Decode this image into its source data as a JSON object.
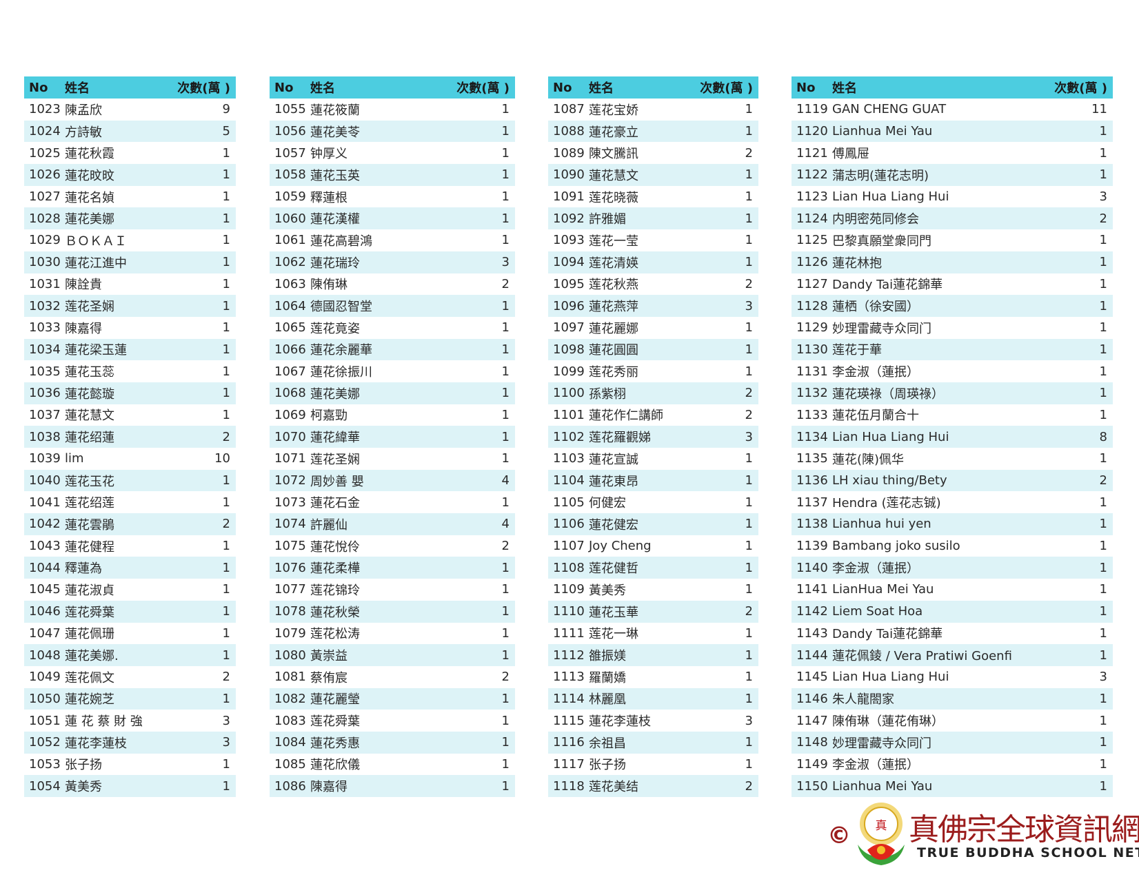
{
  "header": {
    "no": "No",
    "name": "姓名",
    "count": "次數(萬 )"
  },
  "colors": {
    "header_bg": "#4ccde0",
    "stripe": "#ddf3f7",
    "logo_red": "#9b1c1c"
  },
  "tables": [
    [
      [
        "1023",
        "陳孟欣",
        "9"
      ],
      [
        "1024",
        "方詩敏",
        "5"
      ],
      [
        "1025",
        "蓮花秋霞",
        "1"
      ],
      [
        "1026",
        "蓮花旼旼",
        "1"
      ],
      [
        "1027",
        "蓮花名媜",
        "1"
      ],
      [
        "1028",
        "蓮花美娜",
        "1"
      ],
      [
        "1029",
        "ＢＯＫＡＩ",
        "1"
      ],
      [
        "1030",
        "蓮花江進中",
        "1"
      ],
      [
        "1031",
        "陳詮貴",
        "1"
      ],
      [
        "1032",
        "莲花圣娴",
        "1"
      ],
      [
        "1033",
        "陳嘉得",
        "1"
      ],
      [
        "1034",
        "蓮花梁玉蓮",
        "1"
      ],
      [
        "1035",
        "蓮花玉蕊",
        "1"
      ],
      [
        "1036",
        "蓮花懿璇",
        "1"
      ],
      [
        "1037",
        "蓮花慧文",
        "1"
      ],
      [
        "1038",
        "蓮花绍蓮",
        "2"
      ],
      [
        "1039",
        "lim",
        "10"
      ],
      [
        "1040",
        "莲花玉花",
        "1"
      ],
      [
        "1041",
        "莲花绍莲",
        "1"
      ],
      [
        "1042",
        "蓮花雲鵑",
        "2"
      ],
      [
        "1043",
        "蓮花健程",
        "1"
      ],
      [
        "1044",
        "釋蓮為",
        "1"
      ],
      [
        "1045",
        "蓮花淑貞",
        "1"
      ],
      [
        "1046",
        "莲花舜葉",
        "1"
      ],
      [
        "1047",
        "蓮花佩珊",
        "1"
      ],
      [
        "1048",
        "蓮花美娜.",
        "1"
      ],
      [
        "1049",
        "莲花佩文",
        "2"
      ],
      [
        "1050",
        "蓮花婉芝",
        "1"
      ],
      [
        "1051",
        "蓮 花 蔡 財 強",
        "3"
      ],
      [
        "1052",
        "蓮花李蓮枝",
        "3"
      ],
      [
        "1053",
        "张子扬",
        "1"
      ],
      [
        "1054",
        "黃美秀",
        "1"
      ]
    ],
    [
      [
        "1055",
        "蓮花筱蘭",
        "1"
      ],
      [
        "1056",
        "蓮花美苓",
        "1"
      ],
      [
        "1057",
        "钟厚义",
        "1"
      ],
      [
        "1058",
        "蓮花玉英",
        "1"
      ],
      [
        "1059",
        "釋蓮根",
        "1"
      ],
      [
        "1060",
        "蓮花漢權",
        "1"
      ],
      [
        "1061",
        "蓮花高碧鴻",
        "1"
      ],
      [
        "1062",
        "蓮花瑞玲",
        "3"
      ],
      [
        "1063",
        "陳侑琳",
        "2"
      ],
      [
        "1064",
        "德國忍智堂",
        "1"
      ],
      [
        "1065",
        "莲花竟姿",
        "1"
      ],
      [
        "1066",
        "蓮花余麗華",
        "1"
      ],
      [
        "1067",
        "蓮花徐振川",
        "1"
      ],
      [
        "1068",
        "蓮花美娜",
        "1"
      ],
      [
        "1069",
        "柯嘉勁",
        "1"
      ],
      [
        "1070",
        "蓮花緯華",
        "1"
      ],
      [
        "1071",
        "莲花圣娴",
        "1"
      ],
      [
        "1072",
        "周妙善 嬰",
        "4"
      ],
      [
        "1073",
        "蓮花石金",
        "1"
      ],
      [
        "1074",
        "許麗仙",
        "4"
      ],
      [
        "1075",
        "蓮花悅伶",
        "2"
      ],
      [
        "1076",
        "蓮花柔樺",
        "1"
      ],
      [
        "1077",
        "莲花锦玲",
        "1"
      ],
      [
        "1078",
        "蓮花秋榮",
        "1"
      ],
      [
        "1079",
        "莲花松涛",
        "1"
      ],
      [
        "1080",
        "黃崇益",
        "1"
      ],
      [
        "1081",
        "蔡侑宸",
        "2"
      ],
      [
        "1082",
        "蓮花麗瑩",
        "1"
      ],
      [
        "1083",
        "莲花舜葉",
        "1"
      ],
      [
        "1084",
        "蓮花秀惠",
        "1"
      ],
      [
        "1085",
        "蓮花欣儀",
        "1"
      ],
      [
        "1086",
        "陳嘉得",
        "1"
      ]
    ],
    [
      [
        "1087",
        "莲花宝娇",
        "1"
      ],
      [
        "1088",
        "蓮花豪立",
        "1"
      ],
      [
        "1089",
        "陳文騰訊",
        "2"
      ],
      [
        "1090",
        "蓮花慧文",
        "1"
      ],
      [
        "1091",
        "莲花晓薇",
        "1"
      ],
      [
        "1092",
        "許雅媚",
        "1"
      ],
      [
        "1093",
        "莲花一莹",
        "1"
      ],
      [
        "1094",
        "莲花清媖",
        "1"
      ],
      [
        "1095",
        "莲花秋燕",
        "2"
      ],
      [
        "1096",
        "蓮花燕萍",
        "3"
      ],
      [
        "1097",
        "蓮花麗娜",
        "1"
      ],
      [
        "1098",
        "蓮花圓圓",
        "1"
      ],
      [
        "1099",
        "莲花秀丽",
        "1"
      ],
      [
        "1100",
        "孫紫栩",
        "2"
      ],
      [
        "1101",
        "蓮花作仁講師",
        "2"
      ],
      [
        "1102",
        "莲花羅觀娣",
        "3"
      ],
      [
        "1103",
        "蓮花宣誠",
        "1"
      ],
      [
        "1104",
        "蓮花東昂",
        "1"
      ],
      [
        "1105",
        "何健宏",
        "1"
      ],
      [
        "1106",
        "蓮花健宏",
        "1"
      ],
      [
        "1107",
        "Joy Cheng",
        "1"
      ],
      [
        "1108",
        "莲花健哲",
        "1"
      ],
      [
        "1109",
        "黃美秀",
        "1"
      ],
      [
        "1110",
        "蓮花玉華",
        "2"
      ],
      [
        "1111",
        "莲花一琳",
        "1"
      ],
      [
        "1112",
        "雒振媄",
        "1"
      ],
      [
        "1113",
        "羅蘭嬌",
        "1"
      ],
      [
        "1114",
        "林麗凰",
        "1"
      ],
      [
        "1115",
        "蓮花李蓮枝",
        "3"
      ],
      [
        "1116",
        "余祖昌",
        "1"
      ],
      [
        "1117",
        "张子扬",
        "1"
      ],
      [
        "1118",
        "莲花美结",
        "2"
      ]
    ],
    [
      [
        "1119",
        "GAN CHENG GUAT",
        "11"
      ],
      [
        "1120",
        "Lianhua Mei Yau",
        "1"
      ],
      [
        "1121",
        "傅鳳屉",
        "1"
      ],
      [
        "1122",
        "蒲志明(蓮花志明)",
        "1"
      ],
      [
        "1123",
        "Lian Hua Liang Hui",
        "3"
      ],
      [
        "1124",
        "内明密苑同修会",
        "2"
      ],
      [
        "1125",
        "巴黎真願堂衆同門",
        "1"
      ],
      [
        "1126",
        "蓮花林抱",
        "1"
      ],
      [
        "1127",
        "Dandy Tai蓮花錦華",
        "1"
      ],
      [
        "1128",
        "蓮栖（徐安國）",
        "1"
      ],
      [
        "1129",
        "妙理雷藏寺众同门",
        "1"
      ],
      [
        "1130",
        "莲花于華",
        "1"
      ],
      [
        "1131",
        "李金淑（蓮抿）",
        "1"
      ],
      [
        "1132",
        "蓮花瑛祿（周瑛祿）",
        "1"
      ],
      [
        "1133",
        "蓮花伍月蘭合十",
        "1"
      ],
      [
        "1134",
        "Lian Hua Liang Hui",
        "8"
      ],
      [
        "1135",
        "蓮花(陳)佩华",
        "1"
      ],
      [
        "1136",
        "LH xiau thing/Bety",
        "2"
      ],
      [
        "1137",
        "Hendra (莲花志铖)",
        "1"
      ],
      [
        "1138",
        "Lianhua hui yen",
        "1"
      ],
      [
        "1139",
        "Bambang joko susilo",
        "1"
      ],
      [
        "1140",
        "李金淑（蓮抿）",
        "1"
      ],
      [
        "1141",
        "LianHua Mei Yau",
        "1"
      ],
      [
        "1142",
        "Liem Soat Hoa",
        "1"
      ],
      [
        "1143",
        "Dandy Tai蓮花錦華",
        "1"
      ],
      [
        "1144",
        "蓮花佩錂 / Vera Pratiwi Goenfi",
        "1"
      ],
      [
        "1145",
        "Lian Hua Liang Hui",
        "3"
      ],
      [
        "1146",
        "朱人龍閤家",
        "1"
      ],
      [
        "1147",
        "陳侑琳（蓮花侑琳）",
        "1"
      ],
      [
        "1148",
        "妙理雷藏寺众同门",
        "1"
      ],
      [
        "1149",
        "李金淑（蓮抿）",
        "1"
      ],
      [
        "1150",
        "Lianhua Mei Yau",
        "1"
      ]
    ]
  ],
  "footer": {
    "copyright": "©",
    "logo_cn": "真佛宗全球資訊網",
    "logo_en": "TRUE BUDDHA SCHOOL NET",
    "emblem_text": "真佛宗",
    "emblem_icon": "lotus-emblem"
  }
}
